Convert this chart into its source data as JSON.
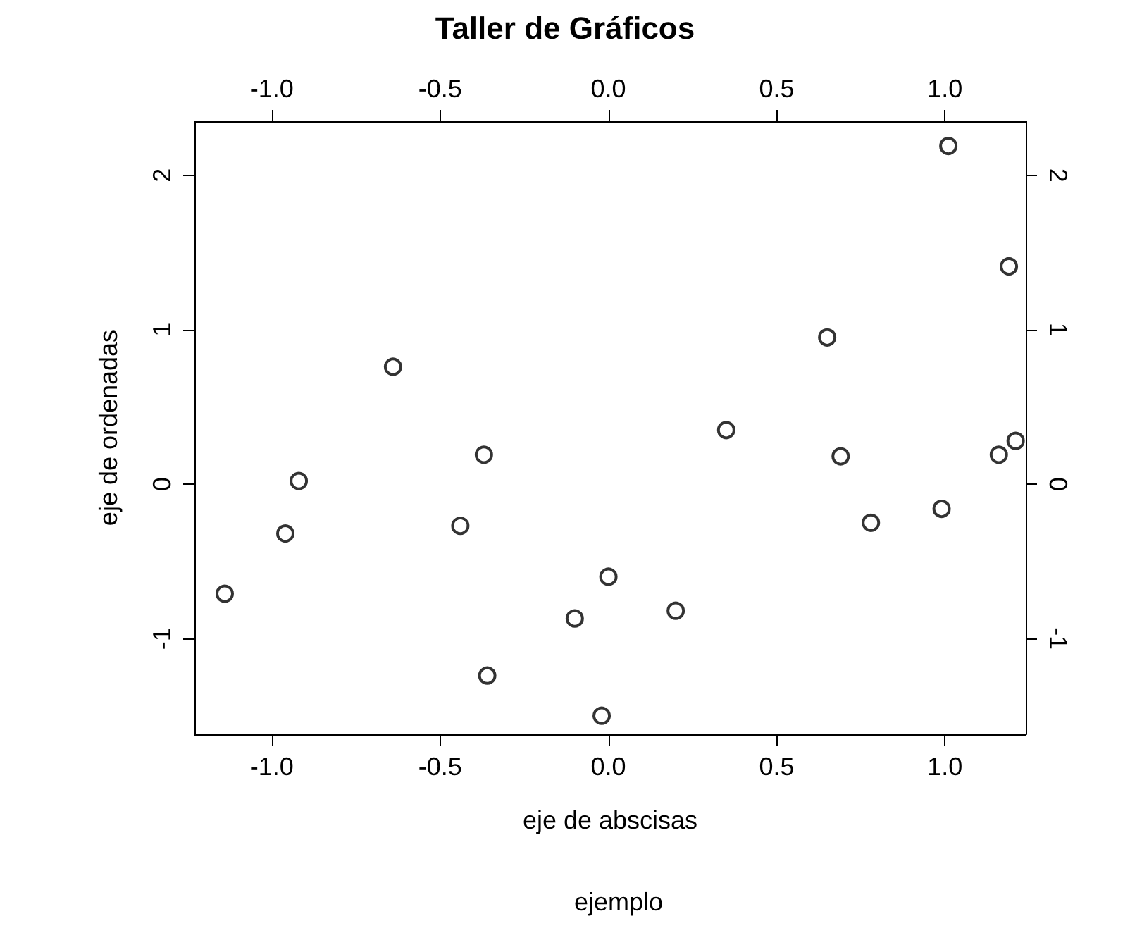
{
  "chart_data": {
    "type": "scatter",
    "title": "Taller de Gráficos",
    "subtitle": "ejemplo",
    "xlabel": "eje de abscisas",
    "ylabel": "eje de ordenadas",
    "x": [
      -1.14,
      -0.96,
      -0.92,
      -0.64,
      -0.44,
      -0.37,
      -0.36,
      -0.1,
      -0.02,
      0.0,
      0.2,
      0.35,
      0.65,
      0.69,
      0.78,
      0.99,
      1.01,
      1.19,
      1.16,
      1.21
    ],
    "values": [
      -0.71,
      -0.32,
      0.02,
      0.76,
      -0.27,
      0.19,
      -1.24,
      -0.87,
      -1.5,
      -0.6,
      -0.82,
      0.35,
      0.95,
      0.18,
      -0.25,
      -0.16,
      2.19,
      1.41,
      0.19,
      0.28
    ],
    "color": "#000000",
    "marker": "circle",
    "grid": false,
    "xlim": [
      -1.23,
      1.24
    ],
    "ylim": [
      -1.62,
      2.35
    ],
    "xticks": [
      {
        "value": -1,
        "label": "-1.0"
      },
      {
        "value": -0.5,
        "label": "-0.5"
      },
      {
        "value": 0,
        "label": "0.0"
      },
      {
        "value": 0.5,
        "label": "0.5"
      },
      {
        "value": 1,
        "label": "1.0"
      }
    ],
    "yticks": [
      -1,
      0,
      1,
      2
    ],
    "x2lim": [
      -1.23,
      1.24
    ],
    "x2ticks": [
      {
        "value": -1,
        "label": "-1.0"
      },
      {
        "value": -0.5,
        "label": "-0.5"
      },
      {
        "value": 0,
        "label": "0.0"
      },
      {
        "value": 0.5,
        "label": "0.5"
      },
      {
        "value": 1,
        "label": "1.0"
      }
    ],
    "y2lim": [
      -1.62,
      2.35
    ],
    "y2ticks": [
      -1,
      0,
      1,
      2
    ]
  }
}
